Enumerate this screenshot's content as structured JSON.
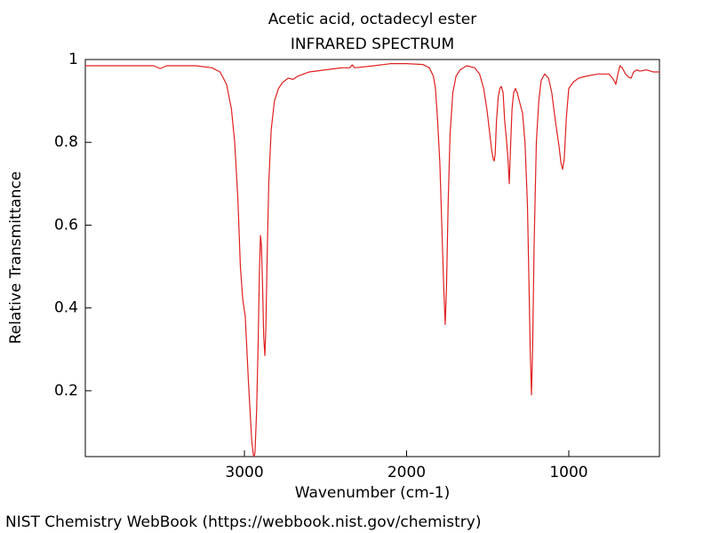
{
  "chart_data": {
    "type": "line",
    "title": "Acetic acid, octadecyl ester",
    "subtitle": "INFRARED SPECTRUM",
    "xlabel": "Wavenumber (cm-1)",
    "ylabel": "Relative Transmittance",
    "color": "#e02020",
    "xlim": [
      3981,
      441
    ],
    "ylim": [
      0.041,
      1
    ],
    "xticks": [
      3000,
      2000,
      1000
    ],
    "yticks": [
      0.2,
      0.4,
      0.6,
      0.8,
      1
    ],
    "x": [
      3981,
      3800,
      3650,
      3560,
      3520,
      3480,
      3300,
      3200,
      3150,
      3110,
      3080,
      3060,
      3040,
      3025,
      3010,
      2995,
      2975,
      2955,
      2945,
      2940,
      2935,
      2925,
      2915,
      2908,
      2901,
      2895,
      2888,
      2881,
      2874,
      2868,
      2860,
      2850,
      2835,
      2815,
      2790,
      2764,
      2730,
      2700,
      2670,
      2600,
      2500,
      2400,
      2350,
      2335,
      2320,
      2200,
      2100,
      2000,
      1900,
      1860,
      1835,
      1822,
      1810,
      1795,
      1783,
      1772,
      1762,
      1754,
      1744,
      1732,
      1715,
      1695,
      1670,
      1630,
      1580,
      1550,
      1525,
      1505,
      1490,
      1475,
      1466,
      1460,
      1454,
      1446,
      1435,
      1425,
      1416,
      1405,
      1395,
      1385,
      1375,
      1367,
      1360,
      1350,
      1340,
      1329,
      1318,
      1305,
      1285,
      1270,
      1255,
      1245,
      1238,
      1230,
      1223,
      1214,
      1200,
      1185,
      1170,
      1148,
      1125,
      1105,
      1082,
      1060,
      1048,
      1038,
      1028,
      1015,
      1000,
      973,
      940,
      890,
      820,
      753,
      730,
      715,
      710,
      700,
      685,
      671,
      650,
      630,
      616,
      600,
      580,
      562,
      520,
      480,
      441
    ],
    "values": [
      0.985,
      0.985,
      0.985,
      0.985,
      0.978,
      0.985,
      0.985,
      0.98,
      0.97,
      0.94,
      0.88,
      0.8,
      0.66,
      0.5,
      0.42,
      0.38,
      0.22,
      0.08,
      0.045,
      0.042,
      0.05,
      0.15,
      0.32,
      0.48,
      0.575,
      0.55,
      0.45,
      0.33,
      0.285,
      0.35,
      0.52,
      0.7,
      0.83,
      0.9,
      0.93,
      0.945,
      0.955,
      0.952,
      0.96,
      0.97,
      0.975,
      0.98,
      0.98,
      0.987,
      0.98,
      0.985,
      0.99,
      0.99,
      0.988,
      0.98,
      0.96,
      0.93,
      0.86,
      0.75,
      0.6,
      0.46,
      0.36,
      0.45,
      0.65,
      0.82,
      0.92,
      0.96,
      0.975,
      0.985,
      0.98,
      0.965,
      0.93,
      0.88,
      0.83,
      0.78,
      0.76,
      0.755,
      0.77,
      0.85,
      0.91,
      0.93,
      0.935,
      0.92,
      0.85,
      0.81,
      0.76,
      0.7,
      0.78,
      0.88,
      0.92,
      0.93,
      0.92,
      0.9,
      0.87,
      0.8,
      0.65,
      0.45,
      0.3,
      0.19,
      0.3,
      0.55,
      0.8,
      0.9,
      0.95,
      0.965,
      0.955,
      0.92,
      0.85,
      0.79,
      0.75,
      0.735,
      0.76,
      0.86,
      0.93,
      0.945,
      0.955,
      0.96,
      0.965,
      0.965,
      0.955,
      0.945,
      0.94,
      0.96,
      0.985,
      0.98,
      0.965,
      0.957,
      0.955,
      0.97,
      0.975,
      0.972,
      0.975,
      0.97,
      0.97
    ]
  },
  "footer": "NIST Chemistry WebBook (https://webbook.nist.gov/chemistry)"
}
